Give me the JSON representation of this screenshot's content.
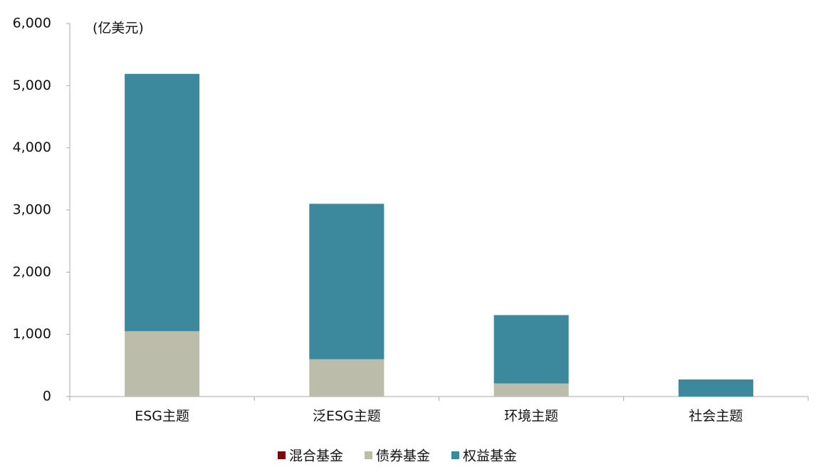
{
  "chart_data": {
    "type": "stacked_bar",
    "unit_label": "(亿美元)",
    "categories": [
      "ESG主题",
      "泛ESG主题",
      "环境主题",
      "社会主题"
    ],
    "series": [
      {
        "name": "混合基金",
        "color": "#7b0a0a",
        "values": [
          0,
          0,
          0,
          0
        ]
      },
      {
        "name": "债券基金",
        "color": "#bcbcaa",
        "values": [
          1050,
          600,
          210,
          0
        ]
      },
      {
        "name": "权益基金",
        "color": "#3c889c",
        "values": [
          4140,
          2500,
          1100,
          275
        ]
      }
    ],
    "ylim": [
      0,
      6000
    ],
    "yticks": [
      0,
      {
        "value": 1000,
        "label": "1,000"
      },
      {
        "value": 2000,
        "label": "2,000"
      },
      {
        "value": 3000,
        "label": "3,000"
      },
      {
        "value": 4000,
        "label": "4,000"
      },
      {
        "value": 5000,
        "label": "5,000"
      },
      {
        "value": 6000,
        "label": "6,000"
      }
    ],
    "legend_position": "bottom"
  }
}
